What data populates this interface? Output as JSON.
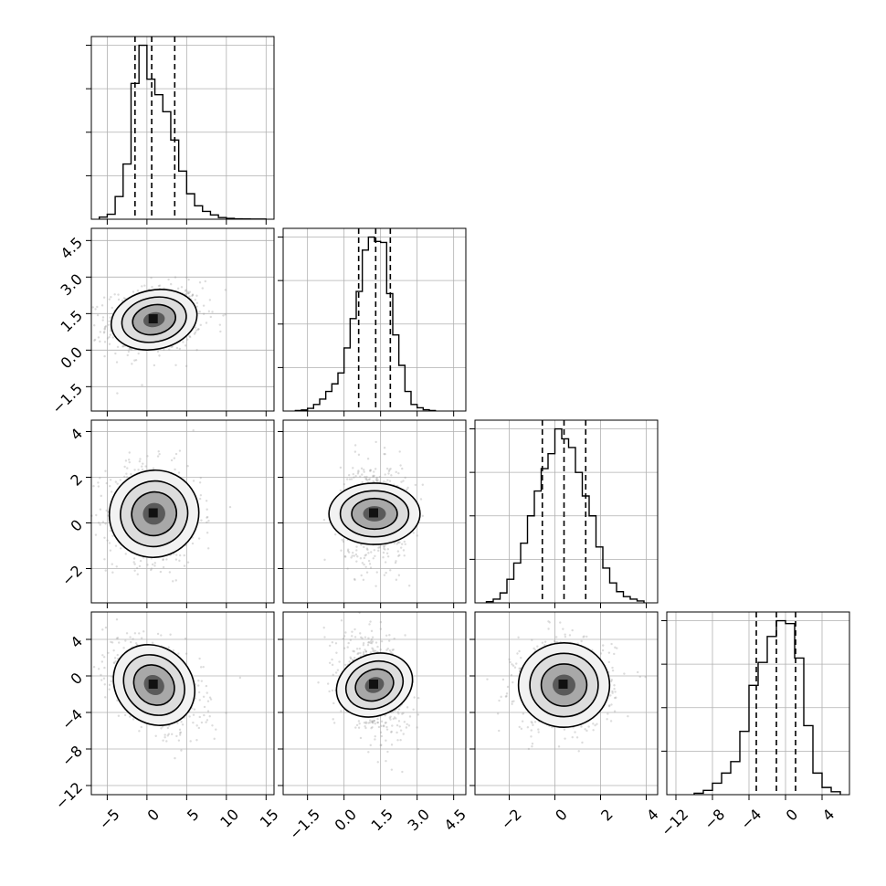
{
  "chart_data": {
    "type": "corner",
    "n_params": 4,
    "quantiles": [
      0.16,
      0.5,
      0.84
    ],
    "grid": true,
    "params": [
      {
        "index": 0,
        "range": [
          -7,
          16
        ],
        "ticks": [
          -5,
          0,
          5,
          10,
          15
        ],
        "tick_labels": [
          "−5",
          "0",
          "5",
          "10",
          "15"
        ],
        "mean": 0.9,
        "sd": 2.6,
        "quantile_values": [
          -1.5,
          0.6,
          3.5
        ],
        "hist_bins": [
          -6,
          -5,
          -4,
          -3,
          -2,
          -1,
          0,
          1,
          2,
          3,
          4,
          5,
          6,
          7,
          8,
          9,
          10,
          11,
          12,
          13,
          14,
          15
        ],
        "hist_counts": [
          15,
          35,
          160,
          390,
          960,
          1230,
          990,
          880,
          760,
          560,
          340,
          180,
          95,
          55,
          30,
          12,
          6,
          3,
          2,
          1,
          1
        ]
      },
      {
        "index": 1,
        "range": [
          -2.5,
          5.0
        ],
        "ticks": [
          -1.5,
          0.0,
          1.5,
          3.0,
          4.5
        ],
        "tick_labels": [
          "−1.5",
          "0.0",
          "1.5",
          "3.0",
          "4.5"
        ],
        "mean": 1.25,
        "sd": 0.6,
        "quantile_values": [
          0.6,
          1.3,
          1.9
        ],
        "hist_bins": [
          -2.0,
          -1.75,
          -1.5,
          -1.25,
          -1.0,
          -0.75,
          -0.5,
          -0.25,
          0.0,
          0.25,
          0.5,
          0.75,
          1.0,
          1.25,
          1.5,
          1.75,
          2.0,
          2.25,
          2.5,
          2.75,
          3.0,
          3.25,
          3.5,
          3.75
        ],
        "hist_counts": [
          5,
          10,
          25,
          60,
          110,
          180,
          250,
          350,
          580,
          850,
          1100,
          1480,
          1600,
          1560,
          1550,
          1080,
          700,
          420,
          180,
          60,
          30,
          12,
          5
        ]
      },
      {
        "index": 2,
        "range": [
          -3.5,
          4.5
        ],
        "ticks": [
          -2,
          0,
          2,
          4
        ],
        "tick_labels": [
          "−2",
          "0",
          "2",
          "4"
        ],
        "mean": 0.4,
        "sd": 0.95,
        "quantile_values": [
          -0.55,
          0.4,
          1.35
        ],
        "hist_bins": [
          -3.0,
          -2.7,
          -2.4,
          -2.1,
          -1.8,
          -1.5,
          -1.2,
          -0.9,
          -0.6,
          -0.3,
          0.0,
          0.3,
          0.6,
          0.9,
          1.2,
          1.5,
          1.8,
          2.1,
          2.4,
          2.7,
          3.0,
          3.3,
          3.6,
          3.9
        ],
        "hist_counts": [
          10,
          30,
          80,
          190,
          320,
          480,
          700,
          900,
          1080,
          1200,
          1400,
          1320,
          1250,
          1050,
          860,
          700,
          450,
          280,
          160,
          90,
          50,
          30,
          15
        ]
      },
      {
        "index": 3,
        "range": [
          -13,
          7
        ],
        "ticks": [
          -12,
          -8,
          -4,
          0,
          4
        ],
        "tick_labels": [
          "−12",
          "−8",
          "−4",
          "0",
          "4"
        ],
        "mean": -1.0,
        "sd": 2.2,
        "quantile_values": [
          -3.2,
          -1.0,
          1.1
        ],
        "hist_bins": [
          -10,
          -9,
          -8,
          -7,
          -6,
          -5,
          -4,
          -3,
          -2,
          -1,
          0,
          1,
          2,
          3,
          4,
          5,
          6
        ],
        "hist_counts": [
          10,
          30,
          80,
          150,
          230,
          440,
          760,
          920,
          1100,
          1210,
          1190,
          950,
          480,
          150,
          50,
          20
        ]
      }
    ],
    "pairs": [
      {
        "row": 1,
        "col": 0,
        "corr": 0.15
      },
      {
        "row": 2,
        "col": 0,
        "corr": -0.05
      },
      {
        "row": 2,
        "col": 1,
        "corr": 0.0
      },
      {
        "row": 3,
        "col": 0,
        "corr": -0.45
      },
      {
        "row": 3,
        "col": 1,
        "corr": -0.3
      },
      {
        "row": 3,
        "col": 2,
        "corr": 0.0
      }
    ]
  }
}
